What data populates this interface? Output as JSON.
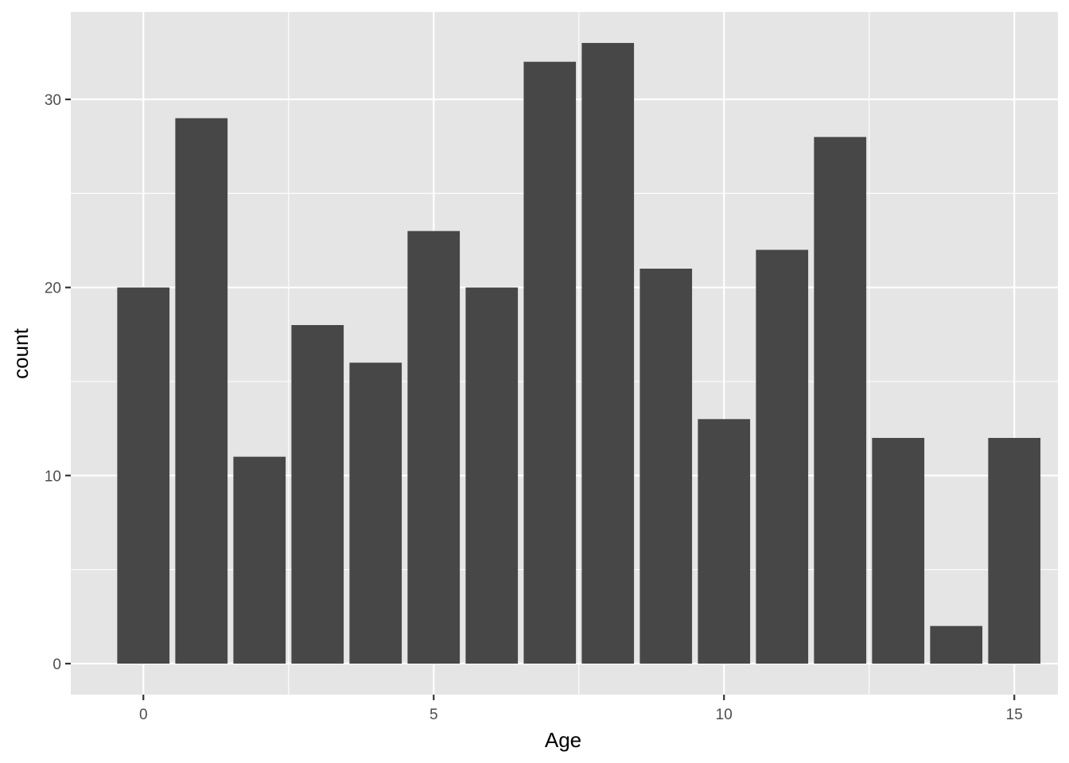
{
  "chart_data": {
    "type": "bar",
    "x": [
      0,
      1,
      2,
      3,
      4,
      5,
      6,
      7,
      8,
      9,
      10,
      11,
      12,
      13,
      14,
      15
    ],
    "values": [
      20,
      29,
      11,
      18,
      16,
      23,
      20,
      32,
      33,
      21,
      13,
      22,
      28,
      12,
      2,
      12
    ],
    "xlabel": "Age",
    "ylabel": "count",
    "xlim": [
      -1.25,
      15.75
    ],
    "ylim": [
      -1.65,
      34.65
    ],
    "x_ticks": [
      "0",
      "5",
      "10",
      "15"
    ],
    "y_ticks": [
      "0",
      "10",
      "20",
      "30"
    ],
    "x_minor_ticks": [
      2.5,
      7.5,
      12.5
    ],
    "y_minor_ticks": [
      5,
      15,
      25
    ],
    "grid": true,
    "colors": {
      "panel_background": "#e5e5e5",
      "grid": "#ffffff",
      "bar_fill": "#474747",
      "tick_mark": "#333333"
    }
  }
}
